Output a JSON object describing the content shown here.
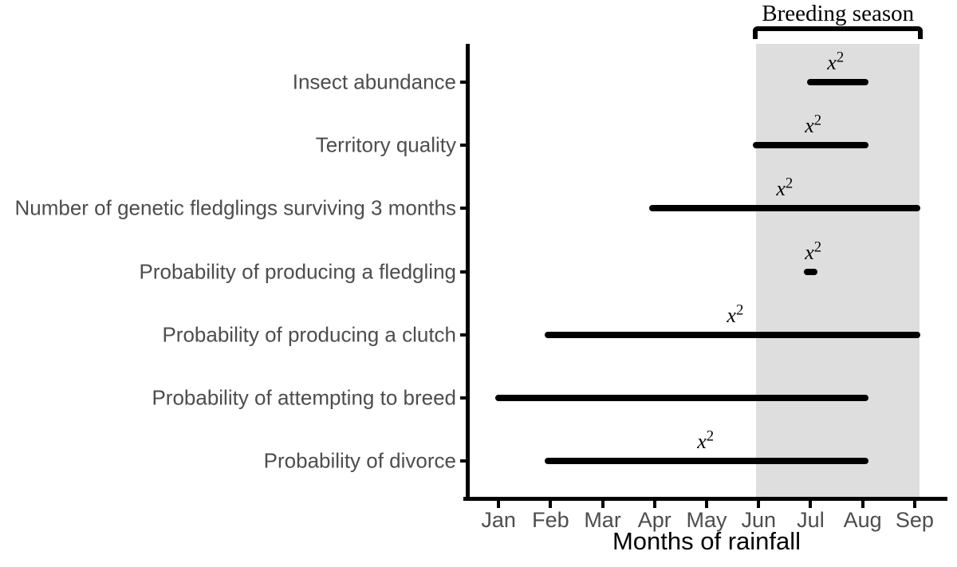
{
  "chart_data": {
    "type": "bar",
    "orientation": "horizontal-range",
    "title": "Breeding season",
    "xlabel": "Months of rainfall",
    "x_tick_labels": [
      "Jan",
      "Feb",
      "Mar",
      "Apr",
      "May",
      "Jun",
      "Jul",
      "Aug",
      "Sep"
    ],
    "x_unit_note": "months numbered Jan=1 through Sep=9",
    "xlim": [
      0.4,
      9.6
    ],
    "grid": "off",
    "categories": [
      "Insect abundance",
      "Territory quality",
      "Number of genetic fledglings surviving 3 months",
      "Probability of producing a fledgling",
      "Probability of producing a clutch",
      "Probability of attempting to breed",
      "Probability of divorce"
    ],
    "bars": [
      {
        "category": "Insect abundance",
        "start": 7.0,
        "end": 8.05,
        "start_label": "Jul",
        "end_label": "Aug",
        "annotation_base": "x",
        "annotation_exp": "2",
        "annotation_x": 7.48
      },
      {
        "category": "Territory quality",
        "start": 5.95,
        "end": 8.05,
        "start_label": "Jun",
        "end_label": "Aug",
        "annotation_base": "x",
        "annotation_exp": "2",
        "annotation_x": 7.05
      },
      {
        "category": "Number of genetic fledglings surviving 3 months",
        "start": 3.95,
        "end": 9.05,
        "start_label": "Apr",
        "end_label": "Sep",
        "annotation_base": "x",
        "annotation_exp": "2",
        "annotation_x": 6.5
      },
      {
        "category": "Probability of producing a fledgling",
        "start": 6.93,
        "end": 7.07,
        "start_label": "Jul",
        "end_label": "Jul",
        "annotation_base": "x",
        "annotation_exp": "2",
        "annotation_x": 7.05
      },
      {
        "category": "Probability of producing a clutch",
        "start": 1.95,
        "end": 9.05,
        "start_label": "Feb",
        "end_label": "Sep",
        "annotation_base": "x",
        "annotation_exp": "2",
        "annotation_x": 5.55
      },
      {
        "category": "Probability of attempting to breed",
        "start": 1.0,
        "end": 8.05,
        "start_label": "Jan",
        "end_label": "Aug",
        "annotation_base": null,
        "annotation_exp": null,
        "annotation_x": null
      },
      {
        "category": "Probability of divorce",
        "start": 1.95,
        "end": 8.05,
        "start_label": "Feb",
        "end_label": "Aug",
        "annotation_base": "x",
        "annotation_exp": "2",
        "annotation_x": 4.98
      }
    ],
    "shaded_region": {
      "label": "Breeding season",
      "start": 5.95,
      "end": 9.1,
      "start_label": "Jun",
      "end_label": "Sep"
    },
    "colors": {
      "bar": "#000000",
      "axis": "#000000",
      "tick_label": "#4d4d4d",
      "category_label": "#4d4d4d",
      "shade": "#dedede",
      "annotation": "#000000",
      "region_title": "#000000",
      "background": "#ffffff"
    }
  }
}
